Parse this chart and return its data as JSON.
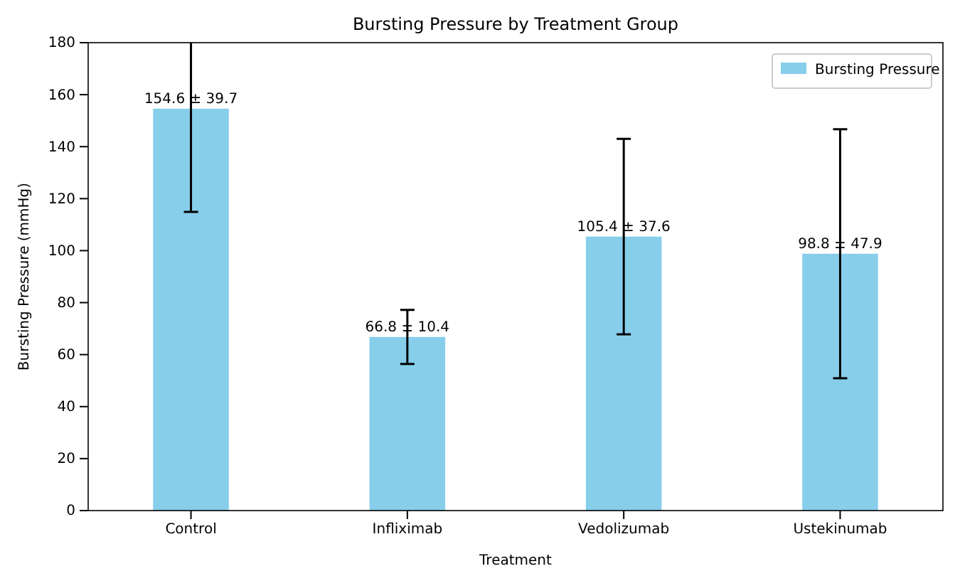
{
  "chart_data": {
    "type": "bar",
    "title": "Bursting Pressure by Treatment Group",
    "xlabel": "Treatment",
    "ylabel": "Bursting Pressure (mmHg)",
    "categories": [
      "Control",
      "Infliximab",
      "Vedolizumab",
      "Ustekinumab"
    ],
    "series": [
      {
        "name": "Bursting Pressure",
        "color": "#87ceeb",
        "values": [
          154.6,
          66.8,
          105.4,
          98.8
        ],
        "errors": [
          39.7,
          10.4,
          37.6,
          47.9
        ],
        "value_labels": [
          "154.6 ± 39.7",
          "66.8 ± 10.4",
          "105.4 ± 37.6",
          "98.8 ± 47.9"
        ]
      }
    ],
    "ylim": [
      0,
      180
    ],
    "yticks": [
      0,
      20,
      40,
      60,
      80,
      100,
      120,
      140,
      160,
      180
    ],
    "legend": "top right",
    "grid": false
  }
}
